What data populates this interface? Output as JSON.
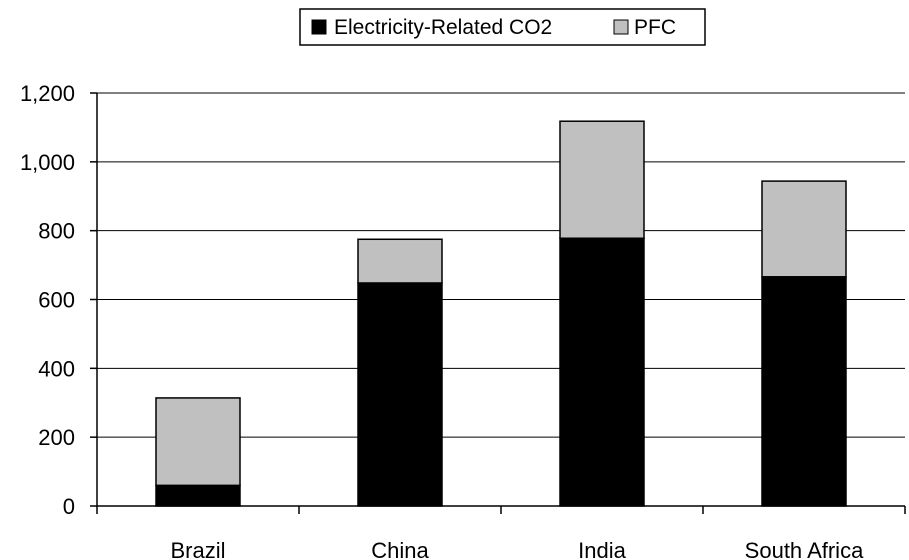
{
  "chart_data": {
    "type": "bar",
    "stacked": true,
    "categories": [
      "Brazil",
      "China",
      "India",
      "South Africa"
    ],
    "series": [
      {
        "name": "Electricity-Related CO2",
        "values": [
          60,
          648,
          778,
          666
        ],
        "color": "#000000"
      },
      {
        "name": "PFC",
        "values": [
          254,
          127,
          340,
          278
        ],
        "color": "#c0c0c0"
      }
    ],
    "title": "",
    "xlabel": "",
    "ylabel": "",
    "ylim": [
      0,
      1200
    ],
    "yticks": [
      0,
      200,
      400,
      600,
      800,
      1000,
      1200
    ],
    "ytick_labels": [
      "0",
      "200",
      "400",
      "600",
      "800",
      "1,000",
      "1,200"
    ],
    "grid": "horizontal",
    "legend_position": "top-center"
  }
}
